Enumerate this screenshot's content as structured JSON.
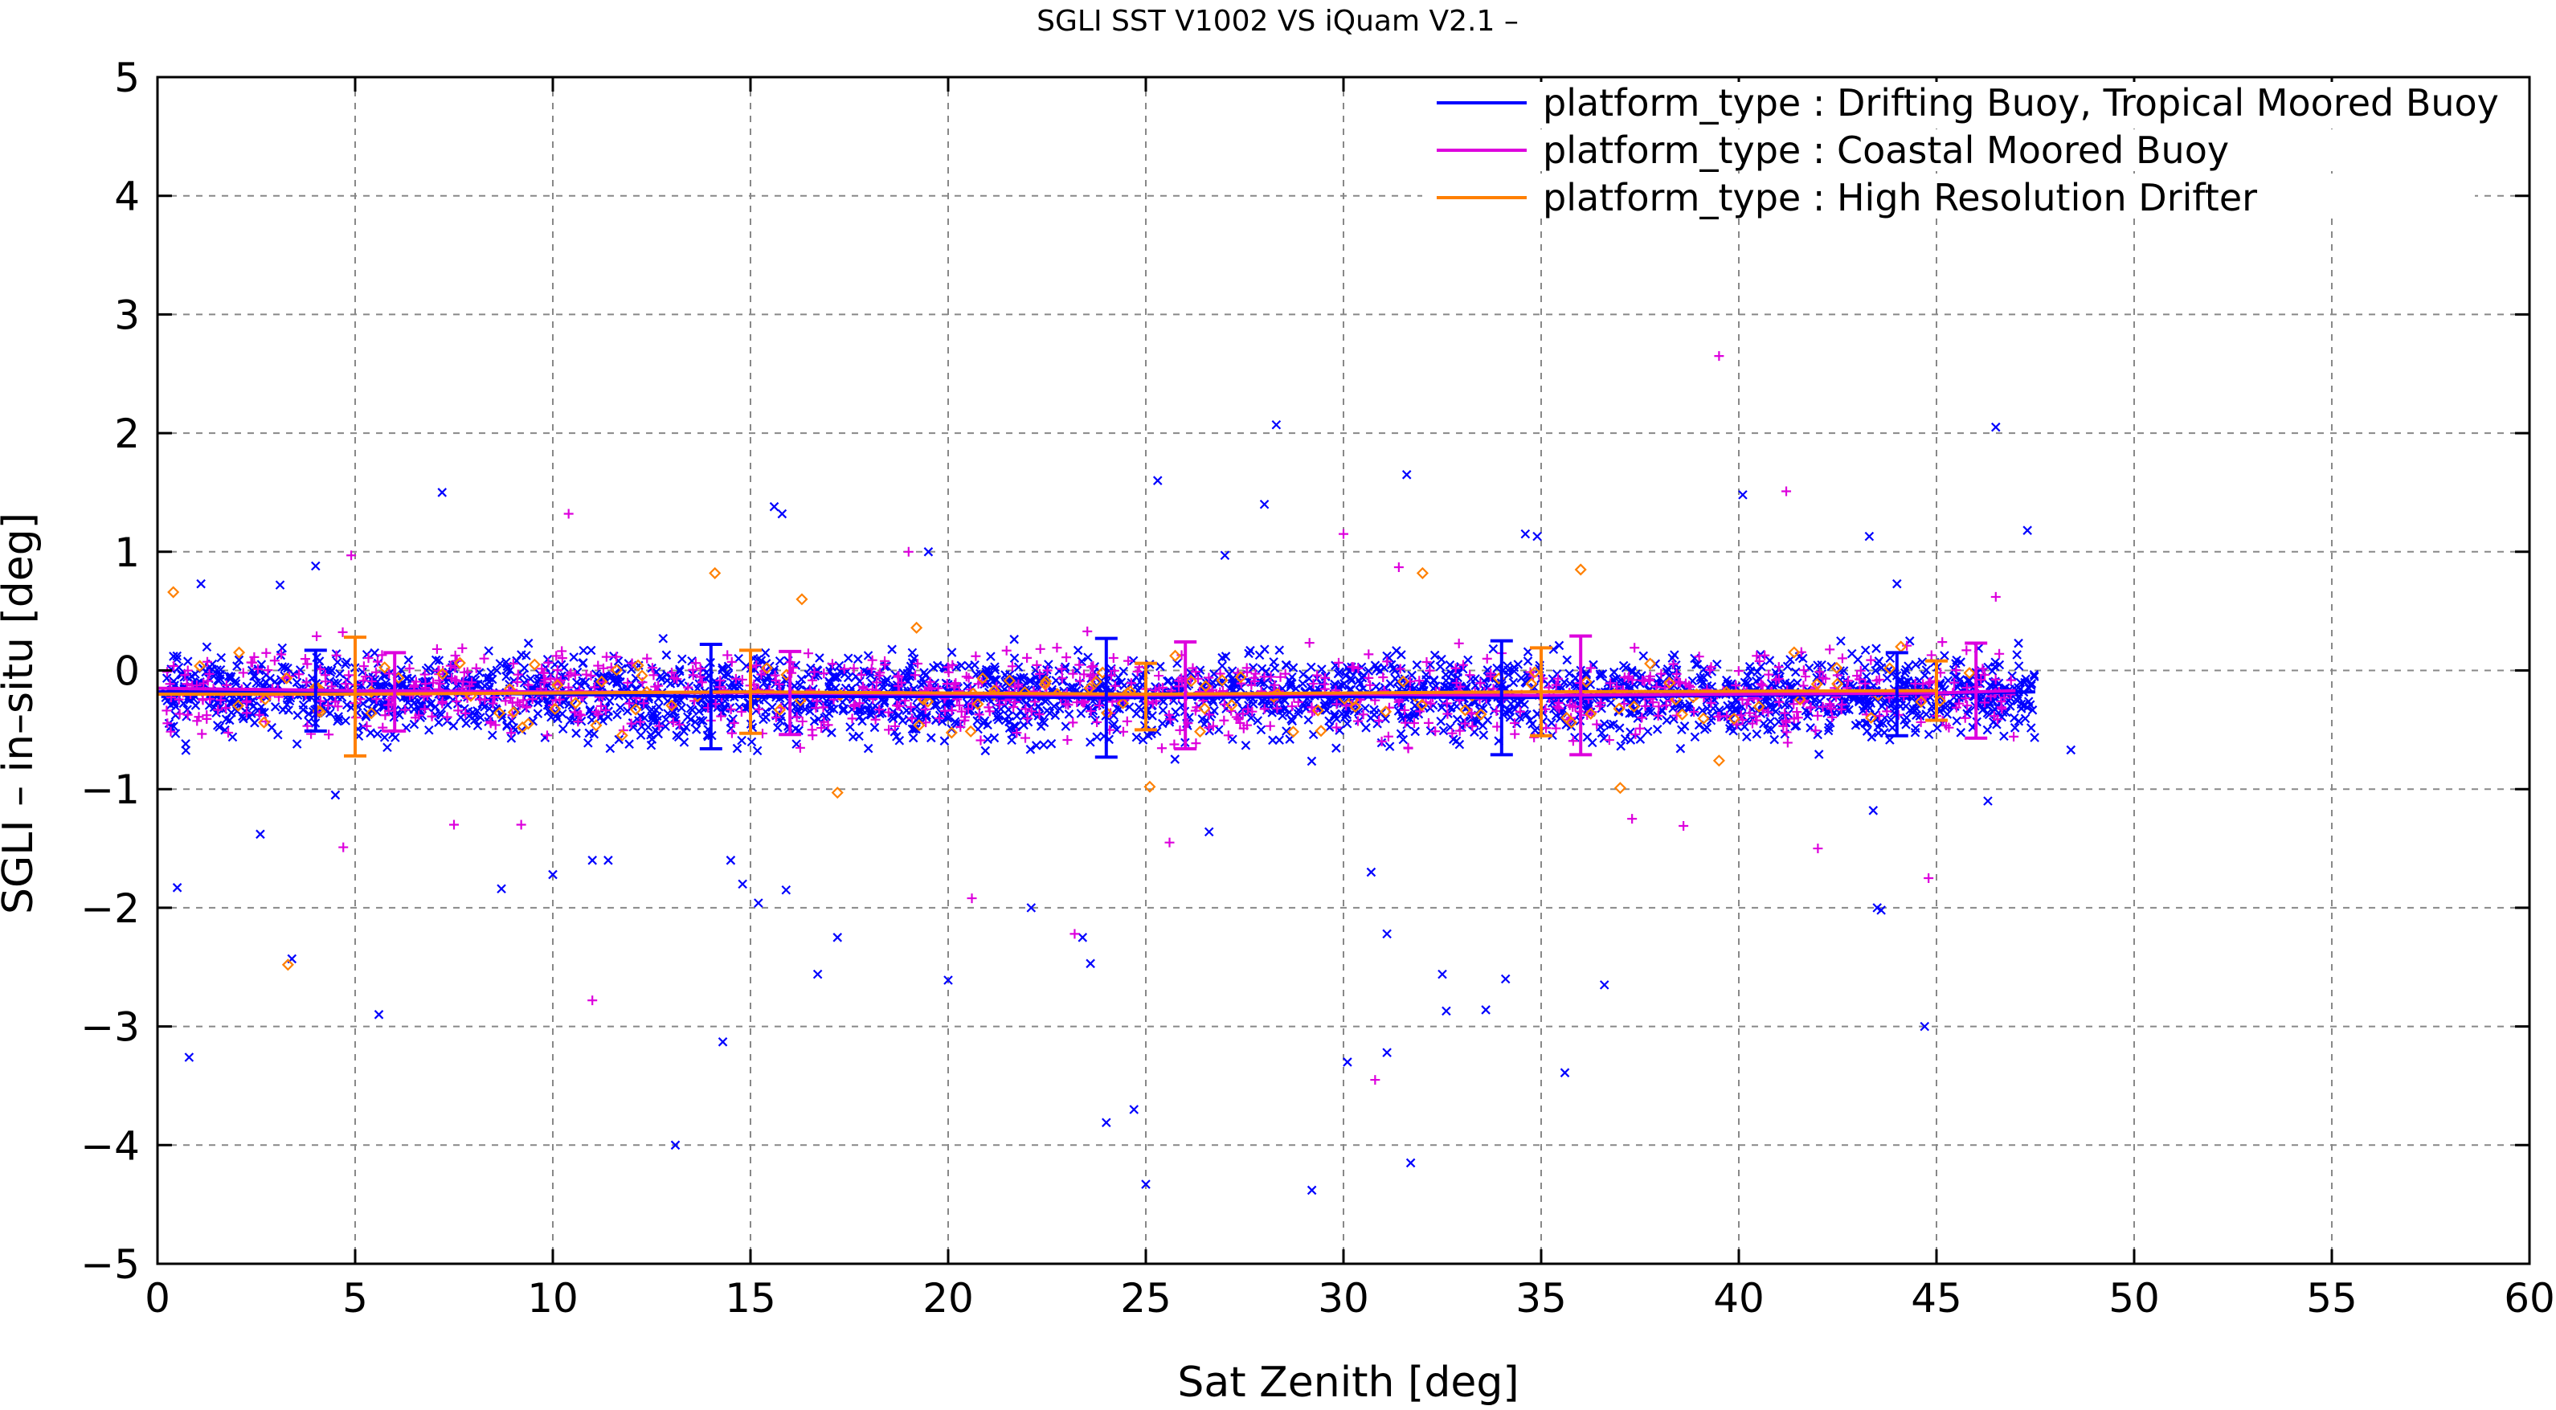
{
  "chart_data": {
    "type": "scatter",
    "title": "SGLI SST V1002 VS iQuam V2.1  –",
    "xlabel": "Sat Zenith [deg]",
    "ylabel": "SGLI – in–situ [deg]",
    "xlim": [
      0,
      60
    ],
    "ylim": [
      -5,
      5
    ],
    "xticks": [
      "0",
      "5",
      "10",
      "15",
      "20",
      "25",
      "30",
      "35",
      "40",
      "45",
      "50",
      "55",
      "60"
    ],
    "yticks": [
      "−5",
      "−4",
      "−3",
      "−2",
      "−1",
      "0",
      "1",
      "2",
      "3",
      "4",
      "5"
    ],
    "grid": true,
    "legend_position": "top-right",
    "series": [
      {
        "name": "platform_type : Drifting Buoy, Tropical Moored Buoy",
        "color": "#0000ff",
        "marker": "x",
        "mean_line": {
          "x": [
            0,
            4,
            10,
            14,
            20,
            24,
            30,
            34,
            40,
            44,
            47.5
          ],
          "y": [
            -0.18,
            -0.18,
            -0.2,
            -0.22,
            -0.22,
            -0.23,
            -0.22,
            -0.23,
            -0.21,
            -0.2,
            -0.18
          ]
        },
        "error_bars": [
          {
            "x": 4,
            "mean": -0.17,
            "sd": 0.34
          },
          {
            "x": 14,
            "mean": -0.22,
            "sd": 0.44
          },
          {
            "x": 24,
            "mean": -0.23,
            "sd": 0.5
          },
          {
            "x": 34,
            "mean": -0.23,
            "sd": 0.48
          },
          {
            "x": 44,
            "mean": -0.2,
            "sd": 0.35
          }
        ],
        "outliers": [
          {
            "x": 0.5,
            "y": -1.83
          },
          {
            "x": 0.8,
            "y": -3.26
          },
          {
            "x": 1.1,
            "y": 0.73
          },
          {
            "x": 2.6,
            "y": -1.38
          },
          {
            "x": 3.1,
            "y": 0.72
          },
          {
            "x": 3.4,
            "y": -2.43
          },
          {
            "x": 4.0,
            "y": 0.88
          },
          {
            "x": 4.5,
            "y": -1.05
          },
          {
            "x": 5.6,
            "y": -2.9
          },
          {
            "x": 7.2,
            "y": 1.5
          },
          {
            "x": 8.7,
            "y": -1.84
          },
          {
            "x": 10.0,
            "y": -1.72
          },
          {
            "x": 11.0,
            "y": -1.6
          },
          {
            "x": 11.4,
            "y": -1.6
          },
          {
            "x": 13.1,
            "y": -4.0
          },
          {
            "x": 14.3,
            "y": -3.13
          },
          {
            "x": 14.5,
            "y": -1.6
          },
          {
            "x": 14.8,
            "y": -1.8
          },
          {
            "x": 15.2,
            "y": -1.96
          },
          {
            "x": 15.6,
            "y": 1.38
          },
          {
            "x": 15.8,
            "y": 1.32
          },
          {
            "x": 15.9,
            "y": -1.85
          },
          {
            "x": 16.7,
            "y": -2.56
          },
          {
            "x": 17.2,
            "y": -2.25
          },
          {
            "x": 19.5,
            "y": 1.0
          },
          {
            "x": 20.0,
            "y": -2.61
          },
          {
            "x": 22.1,
            "y": -2.0
          },
          {
            "x": 23.4,
            "y": -2.25
          },
          {
            "x": 23.6,
            "y": -2.47
          },
          {
            "x": 24.0,
            "y": -3.81
          },
          {
            "x": 24.7,
            "y": -3.7
          },
          {
            "x": 25.0,
            "y": -4.33
          },
          {
            "x": 25.3,
            "y": 1.6
          },
          {
            "x": 26.6,
            "y": -1.36
          },
          {
            "x": 27.0,
            "y": 0.97
          },
          {
            "x": 28.0,
            "y": 1.4
          },
          {
            "x": 28.3,
            "y": 2.07
          },
          {
            "x": 29.2,
            "y": -4.38
          },
          {
            "x": 30.1,
            "y": -3.3
          },
          {
            "x": 30.7,
            "y": -1.7
          },
          {
            "x": 31.1,
            "y": -3.22
          },
          {
            "x": 31.1,
            "y": -2.22
          },
          {
            "x": 31.6,
            "y": 1.65
          },
          {
            "x": 31.7,
            "y": -4.15
          },
          {
            "x": 32.5,
            "y": -2.56
          },
          {
            "x": 32.6,
            "y": -2.87
          },
          {
            "x": 33.6,
            "y": -2.86
          },
          {
            "x": 34.1,
            "y": -2.6
          },
          {
            "x": 34.6,
            "y": 1.15
          },
          {
            "x": 34.9,
            "y": 1.13
          },
          {
            "x": 35.6,
            "y": -3.39
          },
          {
            "x": 36.6,
            "y": -2.65
          },
          {
            "x": 40.1,
            "y": 1.48
          },
          {
            "x": 43.3,
            "y": 1.13
          },
          {
            "x": 43.4,
            "y": -1.18
          },
          {
            "x": 43.5,
            "y": -2.0
          },
          {
            "x": 43.6,
            "y": -2.02
          },
          {
            "x": 44.7,
            "y": -3.0
          },
          {
            "x": 44.0,
            "y": 0.73
          },
          {
            "x": 46.5,
            "y": 2.05
          },
          {
            "x": 46.3,
            "y": -1.1
          },
          {
            "x": 47.3,
            "y": 1.18
          },
          {
            "x": 48.4,
            "y": -0.67
          }
        ]
      },
      {
        "name": "platform_type : Coastal Moored Buoy",
        "color": "#dd00dd",
        "marker": "+",
        "mean_line": {
          "x": [
            0,
            5,
            10,
            15,
            20,
            25,
            30,
            35,
            40,
            45,
            47
          ],
          "y": [
            -0.15,
            -0.17,
            -0.18,
            -0.19,
            -0.2,
            -0.21,
            -0.2,
            -0.21,
            -0.2,
            -0.19,
            -0.17
          ]
        },
        "error_bars": [
          {
            "x": 6,
            "mean": -0.18,
            "sd": 0.33
          },
          {
            "x": 16,
            "mean": -0.19,
            "sd": 0.35
          },
          {
            "x": 26,
            "mean": -0.21,
            "sd": 0.45
          },
          {
            "x": 36,
            "mean": -0.21,
            "sd": 0.5
          },
          {
            "x": 46,
            "mean": -0.17,
            "sd": 0.4
          }
        ],
        "outliers": [
          {
            "x": 4.7,
            "y": -1.49
          },
          {
            "x": 4.9,
            "y": 0.97
          },
          {
            "x": 7.5,
            "y": -1.3
          },
          {
            "x": 9.2,
            "y": -1.3
          },
          {
            "x": 10.4,
            "y": 1.32
          },
          {
            "x": 11.0,
            "y": -2.78
          },
          {
            "x": 19.0,
            "y": 1.0
          },
          {
            "x": 20.6,
            "y": -1.92
          },
          {
            "x": 23.2,
            "y": -2.22
          },
          {
            "x": 25.6,
            "y": -1.45
          },
          {
            "x": 30.0,
            "y": 1.15
          },
          {
            "x": 30.8,
            "y": -3.45
          },
          {
            "x": 31.4,
            "y": 0.87
          },
          {
            "x": 37.3,
            "y": -1.25
          },
          {
            "x": 38.6,
            "y": -1.31
          },
          {
            "x": 39.5,
            "y": 2.65
          },
          {
            "x": 41.2,
            "y": 1.51
          },
          {
            "x": 42.0,
            "y": -1.5
          },
          {
            "x": 44.8,
            "y": -1.75
          },
          {
            "x": 46.5,
            "y": 0.62
          }
        ]
      },
      {
        "name": "platform_type : High Resolution Drifter",
        "color": "#ff8000",
        "marker": "diamond",
        "mean_line": {
          "x": [
            0,
            5,
            15,
            25,
            35,
            45
          ],
          "y": [
            -0.2,
            -0.2,
            -0.18,
            -0.2,
            -0.18,
            -0.17
          ]
        },
        "error_bars": [
          {
            "x": 5,
            "mean": -0.22,
            "sd": 0.5
          },
          {
            "x": 15,
            "mean": -0.18,
            "sd": 0.35
          },
          {
            "x": 25,
            "mean": -0.22,
            "sd": 0.28
          },
          {
            "x": 35,
            "mean": -0.18,
            "sd": 0.37
          },
          {
            "x": 45,
            "mean": -0.17,
            "sd": 0.25
          }
        ],
        "outliers": [
          {
            "x": 0.4,
            "y": 0.66
          },
          {
            "x": 3.3,
            "y": -2.48
          },
          {
            "x": 14.1,
            "y": 0.82
          },
          {
            "x": 16.3,
            "y": 0.6
          },
          {
            "x": 17.2,
            "y": -1.03
          },
          {
            "x": 19.2,
            "y": 0.36
          },
          {
            "x": 25.1,
            "y": -0.98
          },
          {
            "x": 32.0,
            "y": 0.82
          },
          {
            "x": 36.0,
            "y": 0.85
          },
          {
            "x": 37.0,
            "y": -0.99
          },
          {
            "x": 39.5,
            "y": -0.76
          },
          {
            "x": 44.1,
            "y": 0.2
          }
        ]
      }
    ]
  }
}
